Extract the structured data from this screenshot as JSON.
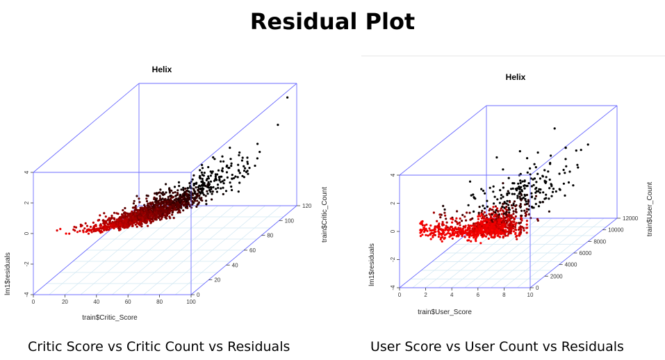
{
  "slide": {
    "title": "Residual Plot",
    "caption_left": "Critic Score vs Critic Count vs Residuals",
    "caption_right": "User Score vs User Count vs Residuals"
  },
  "colors": {
    "box": "#6b6bff",
    "grid": "#cfe6f2",
    "points_low": "#ff0000",
    "points_high": "#000000"
  },
  "chart_data": [
    {
      "type": "scatter",
      "title": "Helix",
      "xlabel": "train$Critic_Score",
      "ylabel": "lm1$residuals",
      "zlabel": "train$Critic_Count",
      "x_ticks": [
        "0",
        "20",
        "40",
        "60",
        "80",
        "100"
      ],
      "y_ticks": [
        "-4",
        "-2",
        "0",
        "2",
        "4"
      ],
      "z_ticks": [
        "0",
        "20",
        "40",
        "60",
        "80",
        "100",
        "120"
      ],
      "xlim": [
        0,
        100
      ],
      "ylim": [
        -4,
        4
      ],
      "zlim": [
        0,
        120
      ],
      "color_gradient": "red to black",
      "approx_points": 1500
    },
    {
      "type": "scatter",
      "title": "Helix",
      "xlabel": "train$User_Score",
      "ylabel": "lm1$residuals",
      "zlabel": "train$User_Count",
      "x_ticks": [
        "0",
        "2",
        "4",
        "6",
        "8",
        "10"
      ],
      "y_ticks": [
        "-4",
        "-2",
        "0",
        "2",
        "4"
      ],
      "z_ticks": [
        "0",
        "2000",
        "4000",
        "6000",
        "8000",
        "10000",
        "12000"
      ],
      "xlim": [
        0,
        10
      ],
      "ylim": [
        -4,
        4
      ],
      "zlim": [
        0,
        12000
      ],
      "color_gradient": "red to black",
      "approx_points": 1200
    }
  ]
}
